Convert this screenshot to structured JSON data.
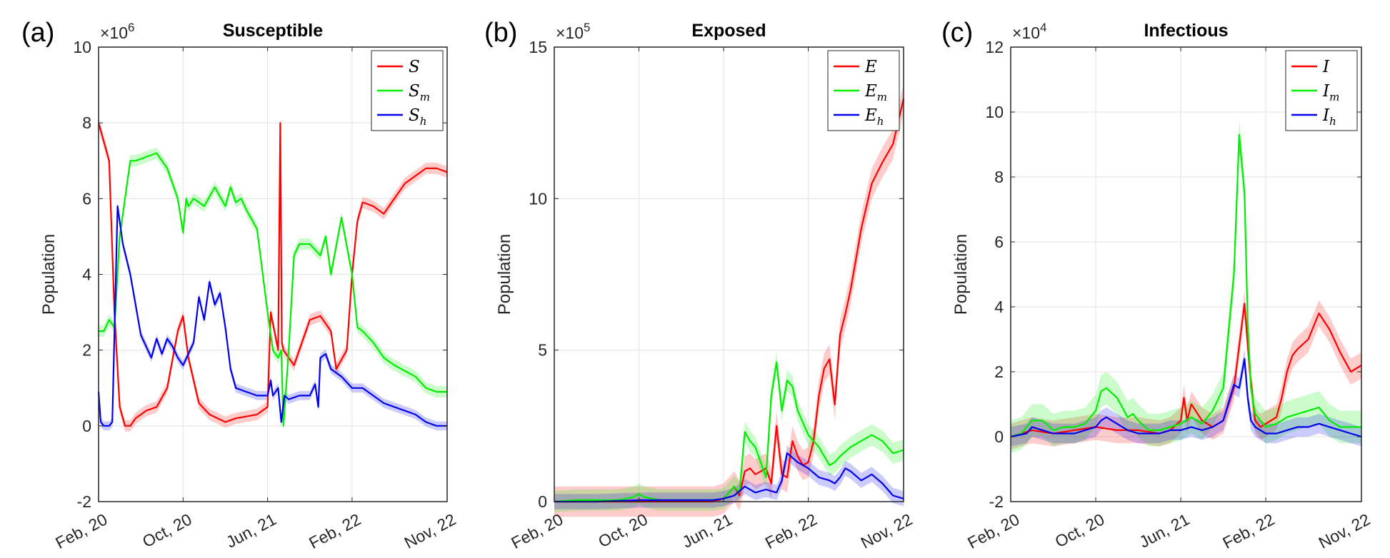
{
  "chart_data": [
    {
      "panel_label": "(a)",
      "title": "Susceptible",
      "type": "line",
      "ylabel": "Population",
      "y_exponent_base": "×10",
      "y_exponent_power": "6",
      "ylim": [
        -2,
        10
      ],
      "yticks": [
        -2,
        0,
        2,
        4,
        6,
        8,
        10
      ],
      "ytick_labels": [
        "-2",
        "0",
        "2",
        "4",
        "6",
        "8",
        "10"
      ],
      "xlim": [
        0,
        33
      ],
      "xticks": [
        0,
        8,
        16,
        24,
        33
      ],
      "xtick_labels": [
        "Feb, 20",
        "Oct, 20",
        "Jun, 21",
        "Feb, 22",
        "Nov, 22"
      ],
      "grid": true,
      "legend_position": "top-right",
      "series": [
        {
          "name": "S",
          "sub": "",
          "color": "#ff0000",
          "band": 0.15,
          "x": [
            0,
            0.5,
            1.0,
            1.5,
            2.0,
            2.5,
            3.0,
            3.5,
            4.5,
            5.5,
            6.5,
            7.5,
            8.0,
            8.5,
            9.0,
            9.5,
            10.5,
            12.0,
            13.0,
            15.0,
            16.0,
            16.3,
            17.0,
            17.2,
            17.35,
            17.5,
            18.5,
            19.0,
            20.0,
            21.0,
            22.0,
            22.5,
            23.5,
            24.0,
            24.5,
            25.0,
            26.0,
            27.0,
            28.0,
            29.0,
            30.0,
            31.0,
            32.0,
            33.0
          ],
          "y": [
            8.0,
            7.5,
            7.0,
            3.0,
            0.5,
            0.0,
            0.0,
            0.2,
            0.4,
            0.5,
            1.0,
            2.5,
            2.9,
            1.8,
            1.2,
            0.6,
            0.3,
            0.1,
            0.2,
            0.3,
            0.5,
            3.0,
            2.0,
            8.0,
            2.2,
            2.0,
            1.6,
            2.0,
            2.8,
            2.9,
            2.5,
            1.5,
            2.0,
            4.0,
            5.4,
            5.9,
            5.8,
            5.6,
            6.0,
            6.4,
            6.6,
            6.8,
            6.8,
            6.7
          ]
        },
        {
          "name": "S",
          "sub": "m",
          "color": "#00ee00",
          "band": 0.15,
          "x": [
            0,
            0.5,
            1.0,
            1.5,
            2.0,
            2.5,
            3.0,
            3.5,
            4.5,
            5.5,
            6.5,
            7.5,
            8.0,
            8.3,
            8.5,
            9.0,
            10.0,
            11.0,
            12.0,
            12.5,
            13.0,
            13.5,
            14.0,
            15.0,
            16.0,
            16.5,
            17.0,
            17.3,
            17.5,
            18.0,
            18.5,
            19.0,
            20.0,
            21.0,
            21.5,
            22.0,
            23.0,
            24.0,
            24.5,
            25.0,
            26.0,
            27.0,
            28.0,
            30.0,
            31.0,
            32.0,
            33.0
          ],
          "y": [
            2.5,
            2.5,
            2.8,
            2.6,
            5.0,
            6.0,
            7.0,
            7.0,
            7.1,
            7.2,
            6.8,
            6.0,
            5.1,
            6.0,
            5.8,
            6.0,
            5.8,
            6.3,
            5.8,
            6.3,
            5.9,
            6.0,
            5.7,
            5.2,
            3.0,
            2.0,
            1.8,
            2.0,
            0.0,
            2.0,
            4.5,
            4.8,
            4.8,
            4.5,
            5.0,
            4.0,
            5.5,
            4.0,
            2.6,
            2.5,
            2.2,
            1.8,
            1.6,
            1.3,
            1.0,
            0.9,
            0.9
          ]
        },
        {
          "name": "S",
          "sub": "h",
          "color": "#0000ee",
          "band": 0.12,
          "x": [
            0,
            0.2,
            0.5,
            1.0,
            1.3,
            1.8,
            2.3,
            3.0,
            4.0,
            5.0,
            5.5,
            6.0,
            6.5,
            7.0,
            7.5,
            8.0,
            9.0,
            9.5,
            10.0,
            10.5,
            11.0,
            11.5,
            12.0,
            12.5,
            13.0,
            14.0,
            15.0,
            16.0,
            16.3,
            16.5,
            17.0,
            17.3,
            17.6,
            18.0,
            19.0,
            20.0,
            20.5,
            20.8,
            21.0,
            21.5,
            22.0,
            23.0,
            24.0,
            25.0,
            26.0,
            27.0,
            28.0,
            30.0,
            31.0,
            32.0,
            33.0
          ],
          "y": [
            0.9,
            0.1,
            0.0,
            0.0,
            0.1,
            5.8,
            4.8,
            4.0,
            2.4,
            1.8,
            2.3,
            1.9,
            2.3,
            2.1,
            1.8,
            1.6,
            2.2,
            3.4,
            2.8,
            3.8,
            3.2,
            3.5,
            2.6,
            1.5,
            1.0,
            0.9,
            0.8,
            0.8,
            1.2,
            0.8,
            1.0,
            0.1,
            0.8,
            0.7,
            0.8,
            0.8,
            1.1,
            0.5,
            1.8,
            1.9,
            1.5,
            1.3,
            1.0,
            1.0,
            0.8,
            0.6,
            0.5,
            0.3,
            0.1,
            0.0,
            0.0
          ]
        }
      ]
    },
    {
      "panel_label": "(b)",
      "title": "Exposed",
      "type": "line",
      "ylabel": "Population",
      "y_exponent_base": "×10",
      "y_exponent_power": "5",
      "ylim": [
        0,
        15
      ],
      "yticks": [
        0,
        5,
        10,
        15
      ],
      "ytick_labels": [
        "0",
        "5",
        "10",
        "15"
      ],
      "xlim": [
        0,
        33
      ],
      "xticks": [
        0,
        8,
        16,
        24,
        33
      ],
      "xtick_labels": [
        "Feb, 20",
        "Oct, 20",
        "Jun, 21",
        "Feb, 22",
        "Nov, 22"
      ],
      "grid": true,
      "legend_position": "top-right",
      "series": [
        {
          "name": "E",
          "sub": "",
          "color": "#ff0000",
          "band": 0.5,
          "x": [
            0,
            5,
            8,
            12,
            15,
            16.0,
            16.5,
            17.0,
            17.5,
            18.0,
            18.5,
            19.0,
            20.0,
            20.5,
            21.0,
            21.5,
            22.0,
            22.5,
            23.0,
            23.5,
            24.0,
            24.5,
            25.0,
            25.5,
            26.0,
            26.5,
            27.0,
            27.5,
            28.0,
            28.5,
            29.0,
            30.0,
            31.0,
            32.0,
            33.0
          ],
          "y": [
            0,
            0,
            0,
            0,
            0,
            0.1,
            0.3,
            0.5,
            0.2,
            1.0,
            1.1,
            0.9,
            1.1,
            0.6,
            2.5,
            0.9,
            0.8,
            2.0,
            1.5,
            1.2,
            1.3,
            2.0,
            3.5,
            4.4,
            4.7,
            3.2,
            5.5,
            6.2,
            7.0,
            8.0,
            9.0,
            10.5,
            11.2,
            11.8,
            13.3
          ]
        },
        {
          "name": "E",
          "sub": "m",
          "color": "#00ee00",
          "band": 0.35,
          "x": [
            0,
            2,
            4,
            6,
            7.5,
            8.0,
            8.5,
            10,
            12,
            14,
            15,
            16.0,
            17.0,
            17.5,
            18.0,
            18.5,
            19.0,
            20.0,
            20.5,
            21.0,
            21.5,
            22.0,
            22.5,
            23.0,
            24.0,
            25.0,
            26.0,
            26.5,
            27.0,
            28.0,
            29.0,
            30.0,
            31.0,
            32.0,
            33.0
          ],
          "y": [
            0,
            0.05,
            0.05,
            0.05,
            0.15,
            0.25,
            0.15,
            0.05,
            0.05,
            0.05,
            0.05,
            0.1,
            0.5,
            0.3,
            2.3,
            2.0,
            1.8,
            0.8,
            3.5,
            4.6,
            3.0,
            4.0,
            3.8,
            3.0,
            2.2,
            1.8,
            1.2,
            1.3,
            1.5,
            1.8,
            2.0,
            2.2,
            2.0,
            1.6,
            1.7
          ]
        },
        {
          "name": "E",
          "sub": "h",
          "color": "#0000ee",
          "band": 0.25,
          "x": [
            0,
            4,
            8,
            12,
            15,
            16.0,
            17.0,
            18.0,
            19.0,
            20.0,
            21.0,
            21.5,
            22.0,
            23.0,
            24.0,
            25.0,
            26.0,
            26.5,
            27.0,
            27.5,
            28.0,
            29.0,
            30.0,
            31.0,
            32.0,
            33.0
          ],
          "y": [
            0,
            0,
            0.05,
            0.05,
            0.05,
            0.1,
            0.2,
            0.5,
            0.3,
            0.4,
            0.3,
            0.7,
            1.6,
            1.3,
            1.1,
            0.8,
            0.7,
            0.6,
            0.8,
            1.1,
            1.0,
            0.7,
            0.9,
            0.6,
            0.2,
            0.1
          ]
        }
      ]
    },
    {
      "panel_label": "(c)",
      "title": "Infectious",
      "type": "line",
      "ylabel": "Population",
      "y_exponent_base": "×10",
      "y_exponent_power": "4",
      "ylim": [
        -2,
        12
      ],
      "yticks": [
        -2,
        0,
        2,
        4,
        6,
        8,
        10,
        12
      ],
      "ytick_labels": [
        "-2",
        "0",
        "2",
        "4",
        "6",
        "8",
        "10",
        "12"
      ],
      "xlim": [
        0,
        33
      ],
      "xticks": [
        0,
        8,
        16,
        24,
        33
      ],
      "xtick_labels": [
        "Feb, 20",
        "Oct, 20",
        "Jun, 21",
        "Feb, 22",
        "Nov, 22"
      ],
      "grid": true,
      "legend_position": "top-right",
      "series": [
        {
          "name": "I",
          "sub": "",
          "color": "#ff0000",
          "band": 0.4,
          "x": [
            0,
            2,
            4,
            6,
            8,
            10,
            12,
            14,
            15,
            16,
            16.3,
            16.6,
            17,
            18,
            19,
            20,
            21,
            22,
            22.5,
            23,
            23.5,
            24,
            25,
            25.5,
            26,
            26.5,
            27,
            28,
            29,
            30,
            31,
            32,
            33
          ],
          "y": [
            0,
            0.2,
            0.1,
            0.2,
            0.3,
            0.2,
            0.2,
            0.1,
            0.2,
            0.5,
            1.2,
            0.5,
            1.0,
            0.5,
            0.3,
            0.5,
            1.5,
            4.1,
            2.0,
            0.5,
            0.3,
            0.4,
            0.6,
            1.2,
            2.0,
            2.5,
            2.7,
            3.0,
            3.8,
            3.3,
            2.6,
            2.0,
            2.2
          ]
        },
        {
          "name": "I",
          "sub": "m",
          "color": "#00ee00",
          "band": 0.5,
          "x": [
            0,
            1,
            2,
            3,
            4,
            5,
            6,
            7,
            8,
            8.5,
            9,
            10,
            11,
            11.5,
            12,
            13,
            14,
            15,
            16,
            17,
            18,
            19,
            20,
            21,
            21.5,
            22,
            22.3,
            22.6,
            23,
            23.5,
            24,
            25,
            26,
            27,
            28,
            29,
            30,
            31,
            32,
            33
          ],
          "y": [
            0,
            0.1,
            0.5,
            0.5,
            0.2,
            0.3,
            0.3,
            0.4,
            0.8,
            1.4,
            1.5,
            1.2,
            0.6,
            0.7,
            0.5,
            0.2,
            0.2,
            0.3,
            0.4,
            0.6,
            0.4,
            0.8,
            1.5,
            5.0,
            9.3,
            7.5,
            3.5,
            1.5,
            0.7,
            0.5,
            0.3,
            0.4,
            0.6,
            0.7,
            0.8,
            0.9,
            0.5,
            0.3,
            0.3,
            0.3
          ]
        },
        {
          "name": "I",
          "sub": "h",
          "color": "#0000ee",
          "band": 0.3,
          "x": [
            0,
            1.5,
            2,
            3,
            4,
            5,
            6,
            7,
            8,
            8.5,
            9,
            10,
            11,
            12,
            13,
            14,
            15,
            16,
            17,
            18,
            19,
            20,
            21,
            21.5,
            22,
            22.3,
            22.6,
            23,
            24,
            25,
            26,
            27,
            28,
            29,
            30,
            31,
            32,
            33
          ],
          "y": [
            0,
            0.1,
            0.3,
            0.2,
            0.1,
            0.1,
            0.1,
            0.2,
            0.3,
            0.5,
            0.6,
            0.4,
            0.2,
            0.1,
            0.1,
            0.1,
            0.2,
            0.2,
            0.3,
            0.2,
            0.3,
            0.5,
            1.6,
            1.5,
            2.4,
            1.2,
            0.5,
            0.3,
            0.1,
            0.1,
            0.2,
            0.3,
            0.3,
            0.4,
            0.3,
            0.2,
            0.1,
            0.0
          ]
        }
      ]
    }
  ]
}
